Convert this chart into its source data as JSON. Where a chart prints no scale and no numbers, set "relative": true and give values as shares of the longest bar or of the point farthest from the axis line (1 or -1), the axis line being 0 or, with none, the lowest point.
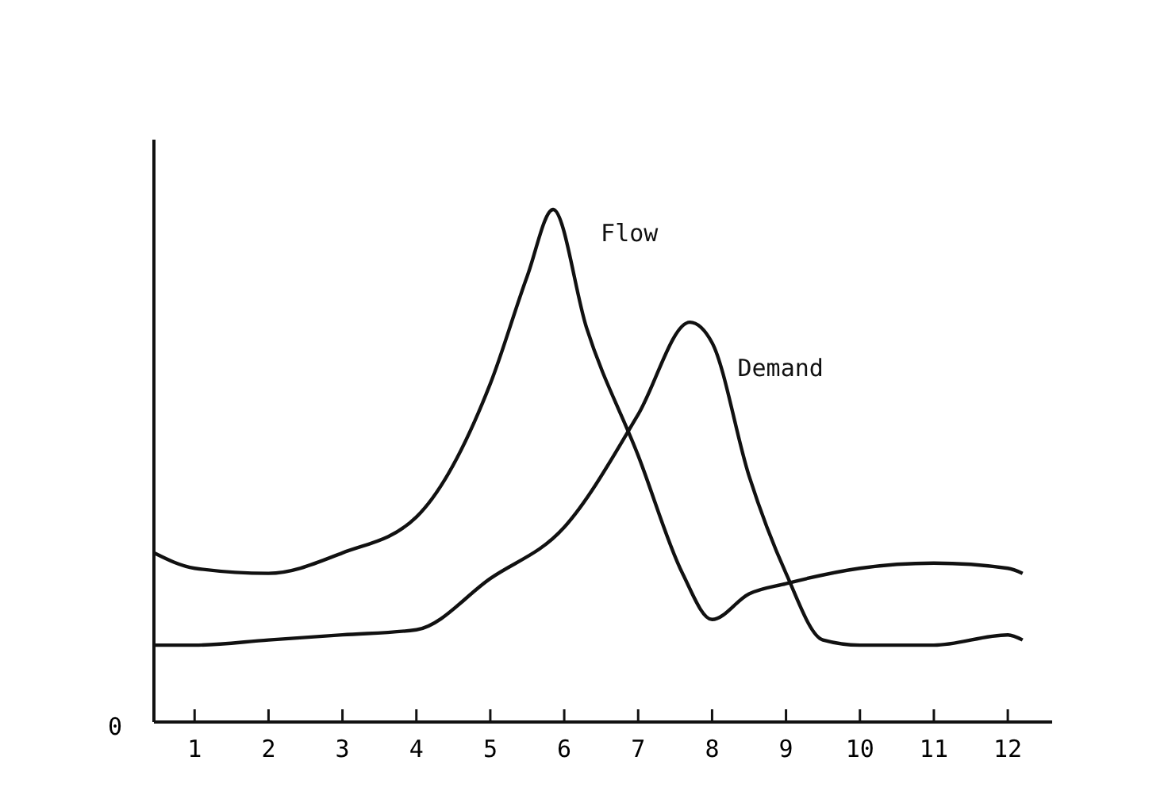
{
  "chart_data": {
    "type": "line",
    "relative": true,
    "xlim": [
      0.45,
      12.6
    ],
    "xticks": [
      1,
      2,
      3,
      4,
      5,
      6,
      7,
      8,
      9,
      10,
      11,
      12
    ],
    "grid": false,
    "marker": "none",
    "line_style": "solid",
    "annotations": [
      "0"
    ],
    "series": [
      {
        "name": "Flow",
        "color": "#111111",
        "x": [
          0.45,
          1,
          2,
          3,
          4,
          5,
          5.5,
          5.85,
          6.3,
          7,
          7.6,
          8,
          8.5,
          9,
          10,
          11,
          12,
          12.2
        ],
        "values": [
          0.33,
          0.3,
          0.29,
          0.33,
          0.4,
          0.66,
          0.87,
          1.0,
          0.77,
          0.52,
          0.29,
          0.2,
          0.25,
          0.27,
          0.3,
          0.31,
          0.3,
          0.29
        ]
      },
      {
        "name": "Demand",
        "color": "#111111",
        "x": [
          0.45,
          1,
          2,
          3,
          4,
          5,
          6,
          7,
          7.7,
          8,
          8.5,
          9,
          9.5,
          10,
          11,
          12,
          12.2
        ],
        "values": [
          0.15,
          0.15,
          0.16,
          0.17,
          0.18,
          0.28,
          0.38,
          0.6,
          0.78,
          0.74,
          0.48,
          0.29,
          0.16,
          0.15,
          0.15,
          0.17,
          0.16
        ]
      }
    ]
  }
}
